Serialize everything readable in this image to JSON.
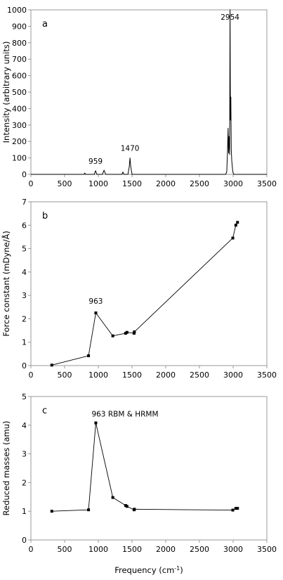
{
  "chart_data": [
    {
      "id": "a",
      "type": "line",
      "panel_label": "a",
      "ylabel": "Intensity (arbitrary units)",
      "xlabel": "",
      "xlim": [
        0,
        3500
      ],
      "ylim": [
        0,
        1000
      ],
      "xticks": [
        0,
        500,
        1000,
        1500,
        2000,
        2500,
        3000,
        3500
      ],
      "yticks": [
        0,
        100,
        200,
        300,
        400,
        500,
        600,
        700,
        800,
        900,
        1000
      ],
      "grid": false,
      "series": [
        {
          "x": [
            0,
            700,
            790,
            800,
            810,
            900,
            940,
            959,
            978,
            1060,
            1085,
            1110,
            1200,
            1350,
            1365,
            1380,
            1440,
            1460,
            1470,
            1480,
            1500,
            1600,
            2850,
            2890,
            2905,
            2915,
            2925,
            2932,
            2940,
            2948,
            2954,
            2960,
            2966,
            2972,
            2980,
            2995,
            3010,
            3500
          ],
          "y": [
            0,
            0,
            0,
            8,
            0,
            0,
            0,
            22,
            0,
            0,
            25,
            0,
            0,
            0,
            14,
            0,
            0,
            50,
            100,
            50,
            0,
            0,
            0,
            0,
            15,
            120,
            280,
            130,
            230,
            120,
            1000,
            330,
            470,
            150,
            80,
            15,
            0,
            0
          ]
        }
      ],
      "annotations": [
        {
          "text": "959",
          "x": 959,
          "y": 22
        },
        {
          "text": "1470",
          "x": 1470,
          "y": 100
        },
        {
          "text": "2954",
          "x": 2954,
          "y": 1000
        }
      ]
    },
    {
      "id": "b",
      "type": "line",
      "panel_label": "b",
      "ylabel": "Force constant (mDyne/Å)",
      "xlabel": "",
      "xlim": [
        0,
        3500
      ],
      "ylim": [
        0,
        7
      ],
      "xticks": [
        0,
        500,
        1000,
        1500,
        2000,
        2500,
        3000,
        3500
      ],
      "yticks": [
        0,
        1,
        2,
        3,
        4,
        5,
        6,
        7
      ],
      "grid": false,
      "series": [
        {
          "x": [
            310,
            855,
            963,
            1215,
            1405,
            1425,
            1530,
            1535,
            2995,
            3040,
            3065
          ],
          "y": [
            0.02,
            0.42,
            2.25,
            1.27,
            1.38,
            1.42,
            1.38,
            1.44,
            5.45,
            6.0,
            6.12
          ]
        }
      ],
      "annotations": [
        {
          "text": "963",
          "x": 963,
          "y": 2.25
        }
      ]
    },
    {
      "id": "c",
      "type": "line",
      "panel_label": "c",
      "ylabel": "Reduced masses (amu)",
      "xlabel": "Frequency (cm-1)",
      "xlim": [
        0,
        3500
      ],
      "ylim": [
        0,
        5
      ],
      "xticks": [
        0,
        500,
        1000,
        1500,
        2000,
        2500,
        3000,
        3500
      ],
      "yticks": [
        0,
        1,
        2,
        3,
        4,
        5
      ],
      "grid": false,
      "series": [
        {
          "x": [
            310,
            855,
            963,
            1215,
            1405,
            1425,
            1530,
            1535,
            2995,
            3040,
            3065
          ],
          "y": [
            1.0,
            1.05,
            4.08,
            1.48,
            1.2,
            1.17,
            1.05,
            1.07,
            1.04,
            1.1,
            1.1
          ]
        }
      ],
      "annotations": [
        {
          "text": "963 RBM & HRMM",
          "x": 963,
          "y": 4.08
        }
      ]
    }
  ]
}
